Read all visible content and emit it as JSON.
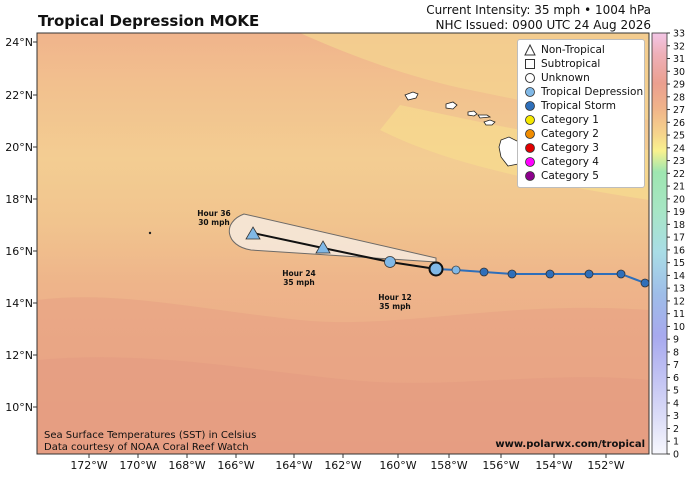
{
  "title": "Tropical Depression MOKE",
  "info": {
    "line1": "Current Intensity: 35 mph • 1004 hPa",
    "line2": "NHC Issued: 0900 UTC 24 Aug 2026"
  },
  "legend": [
    {
      "label": "Non-Tropical",
      "symbol": "triangle",
      "color": "#ffffff"
    },
    {
      "label": "Subtropical",
      "symbol": "square",
      "color": "#ffffff"
    },
    {
      "label": "Unknown",
      "symbol": "circle",
      "color": "#ffffff"
    },
    {
      "label": "Tropical Depression",
      "symbol": "circle",
      "color": "#80b8e6"
    },
    {
      "label": "Tropical Storm",
      "symbol": "circle",
      "color": "#2e6fba"
    },
    {
      "label": "Category 1",
      "symbol": "circle",
      "color": "#f5e800"
    },
    {
      "label": "Category 2",
      "symbol": "circle",
      "color": "#f08c00"
    },
    {
      "label": "Category 3",
      "symbol": "circle",
      "color": "#e00000"
    },
    {
      "label": "Category 4",
      "symbol": "circle",
      "color": "#ff00ff"
    },
    {
      "label": "Category 5",
      "symbol": "circle",
      "color": "#8c008c"
    }
  ],
  "lat_labels": [
    "24°N",
    "22°N",
    "20°N",
    "18°N",
    "16°N",
    "14°N",
    "12°N",
    "10°N"
  ],
  "lon_labels": [
    "172°W",
    "170°W",
    "168°W",
    "166°W",
    "164°W",
    "162°W",
    "160°W",
    "158°W",
    "156°W",
    "154°W",
    "152°W"
  ],
  "colorbar": {
    "ticks": [
      "33",
      "32",
      "31",
      "30",
      "29",
      "28",
      "27",
      "26",
      "25",
      "24",
      "23",
      "22",
      "21",
      "20",
      "19",
      "18",
      "17",
      "16",
      "15",
      "14",
      "13",
      "12",
      "11",
      "10",
      "9",
      "8",
      "7",
      "6",
      "5",
      "4",
      "3",
      "2",
      "1",
      "0"
    ],
    "min": 0,
    "max": 33
  },
  "forecast_labels": [
    {
      "line1": "Hour 36",
      "line2": "30 mph"
    },
    {
      "line1": "Hour 24",
      "line2": "35 mph"
    },
    {
      "line1": "Hour 12",
      "line2": "35 mph"
    }
  ],
  "credit": {
    "line1": "Sea Surface Temperatures (SST) in Celsius",
    "line2": "Data courtesy of NOAA Coral Reef Watch"
  },
  "website": "www.polarwx.com/tropical",
  "colors": {
    "past_track": "#2e6fba",
    "forecast_cone": "#f6e6d6",
    "sst_warm": "#e8a586",
    "sst_mid": "#f0bd8a",
    "sst_cool": "#f7e28f"
  }
}
